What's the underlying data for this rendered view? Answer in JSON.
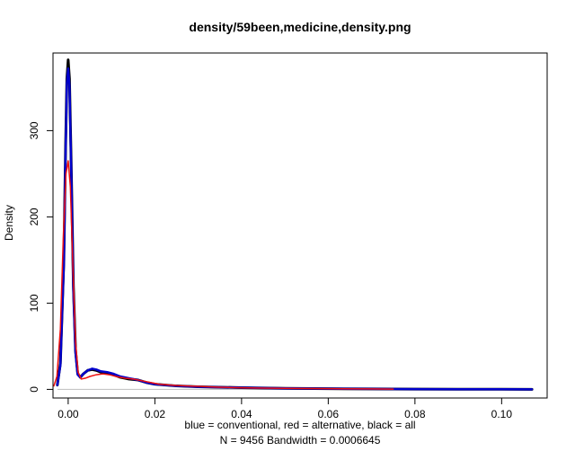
{
  "chart_data": {
    "type": "line",
    "title": "density/59been,medicine,density.png",
    "xlabel": "blue = conventional, red = alternative, black = all",
    "xlabel2": "N = 9456   Bandwidth = 0.0006645",
    "ylabel": "Density",
    "xlim": [
      -0.0035,
      0.1105
    ],
    "ylim": [
      -10,
      390
    ],
    "x_ticks": [
      0.0,
      0.02,
      0.04,
      0.06,
      0.08,
      0.1
    ],
    "x_tick_labels": [
      "0.00",
      "0.02",
      "0.04",
      "0.06",
      "0.08",
      "0.10"
    ],
    "y_ticks": [
      0,
      100,
      200,
      300
    ],
    "y_tick_labels": [
      "0",
      "100",
      "200",
      "300"
    ],
    "grid": false,
    "series": [
      {
        "name": "all",
        "color": "#000000",
        "width": 3,
        "points": [
          [
            -0.0025,
            5
          ],
          [
            -0.0018,
            30
          ],
          [
            -0.001,
            150
          ],
          [
            -0.0006,
            280
          ],
          [
            -0.0003,
            360
          ],
          [
            0.0,
            382
          ],
          [
            0.0003,
            360
          ],
          [
            0.0007,
            260
          ],
          [
            0.0012,
            120
          ],
          [
            0.0017,
            45
          ],
          [
            0.0022,
            18
          ],
          [
            0.0028,
            14
          ],
          [
            0.0035,
            18
          ],
          [
            0.0045,
            22
          ],
          [
            0.0055,
            23
          ],
          [
            0.0065,
            22
          ],
          [
            0.0075,
            20
          ],
          [
            0.009,
            19
          ],
          [
            0.0105,
            17
          ],
          [
            0.012,
            14
          ],
          [
            0.014,
            12
          ],
          [
            0.016,
            11
          ],
          [
            0.018,
            8
          ],
          [
            0.02,
            6
          ],
          [
            0.025,
            4
          ],
          [
            0.03,
            3
          ],
          [
            0.04,
            2
          ],
          [
            0.05,
            1.2
          ],
          [
            0.06,
            0.8
          ],
          [
            0.07,
            0.5
          ],
          [
            0.08,
            0.3
          ],
          [
            0.09,
            0.2
          ],
          [
            0.1,
            0.1
          ],
          [
            0.107,
            0.05
          ]
        ]
      },
      {
        "name": "conventional",
        "color": "#0000cc",
        "width": 2.5,
        "points": [
          [
            -0.0025,
            5
          ],
          [
            -0.0018,
            28
          ],
          [
            -0.001,
            145
          ],
          [
            -0.0006,
            275
          ],
          [
            -0.0003,
            355
          ],
          [
            0.0,
            372
          ],
          [
            0.0003,
            352
          ],
          [
            0.0007,
            255
          ],
          [
            0.0012,
            115
          ],
          [
            0.0017,
            42
          ],
          [
            0.0022,
            17
          ],
          [
            0.0028,
            14
          ],
          [
            0.0035,
            18
          ],
          [
            0.0045,
            22
          ],
          [
            0.0055,
            24
          ],
          [
            0.0065,
            23
          ],
          [
            0.0075,
            21
          ],
          [
            0.009,
            20
          ],
          [
            0.0105,
            18
          ],
          [
            0.012,
            15
          ],
          [
            0.014,
            13
          ],
          [
            0.016,
            11
          ],
          [
            0.018,
            8
          ],
          [
            0.02,
            6
          ],
          [
            0.025,
            4
          ],
          [
            0.03,
            3
          ],
          [
            0.04,
            2
          ],
          [
            0.05,
            1.2
          ],
          [
            0.06,
            0.8
          ],
          [
            0.07,
            0.5
          ],
          [
            0.08,
            0.3
          ],
          [
            0.09,
            0.2
          ],
          [
            0.1,
            0.1
          ],
          [
            0.107,
            0.05
          ]
        ]
      },
      {
        "name": "alternative",
        "color": "#ee1111",
        "width": 1.5,
        "points": [
          [
            -0.0033,
            4
          ],
          [
            -0.0026,
            15
          ],
          [
            -0.0018,
            70
          ],
          [
            -0.0011,
            180
          ],
          [
            -0.0005,
            250
          ],
          [
            0.0,
            265
          ],
          [
            0.0005,
            235
          ],
          [
            0.0011,
            140
          ],
          [
            0.0017,
            55
          ],
          [
            0.0023,
            20
          ],
          [
            0.003,
            12
          ],
          [
            0.004,
            13
          ],
          [
            0.005,
            15
          ],
          [
            0.0065,
            17
          ],
          [
            0.008,
            18
          ],
          [
            0.0095,
            17
          ],
          [
            0.011,
            15
          ],
          [
            0.013,
            13
          ],
          [
            0.015,
            12
          ],
          [
            0.017,
            10
          ],
          [
            0.019,
            8
          ],
          [
            0.021,
            6
          ],
          [
            0.025,
            4.5
          ],
          [
            0.03,
            3.5
          ],
          [
            0.035,
            2.5
          ],
          [
            0.04,
            1.8
          ],
          [
            0.045,
            1.5
          ],
          [
            0.05,
            1.2
          ],
          [
            0.06,
            0.8
          ],
          [
            0.07,
            0.5
          ],
          [
            0.075,
            0.3
          ]
        ]
      }
    ]
  }
}
